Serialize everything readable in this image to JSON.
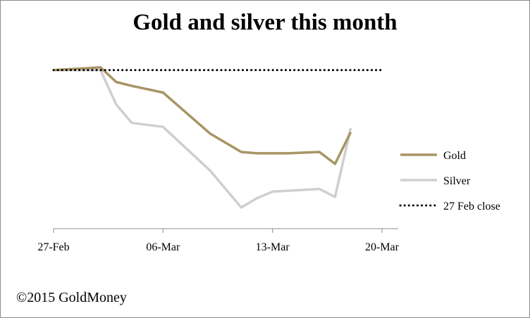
{
  "chart_data": {
    "type": "line",
    "title": "Gold and silver this month",
    "xlabel": "",
    "ylabel": "",
    "x_ticks": [
      "27-Feb",
      "06-Mar",
      "13-Mar",
      "20-Mar"
    ],
    "x_tick_days": [
      0,
      7,
      14,
      21
    ],
    "ylim": [
      88,
      102
    ],
    "legend_position": "right",
    "grid": false,
    "series": [
      {
        "name": "Gold",
        "color": "#a89465",
        "style": "solid",
        "points": [
          [
            0,
            100
          ],
          [
            3,
            100.2
          ],
          [
            4,
            99.1
          ],
          [
            5,
            98.8
          ],
          [
            7,
            98.3
          ],
          [
            10,
            95.2
          ],
          [
            12,
            93.8
          ],
          [
            13,
            93.7
          ],
          [
            15,
            93.7
          ],
          [
            17,
            93.8
          ],
          [
            18,
            92.9
          ],
          [
            19,
            95.3
          ]
        ]
      },
      {
        "name": "Silver",
        "color": "#cfcfcf",
        "style": "solid",
        "points": [
          [
            0,
            100
          ],
          [
            3,
            100
          ],
          [
            4,
            97.4
          ],
          [
            5,
            96.0
          ],
          [
            7,
            95.7
          ],
          [
            10,
            92.4
          ],
          [
            12,
            89.6
          ],
          [
            13,
            90.3
          ],
          [
            14,
            90.8
          ],
          [
            17,
            91.0
          ],
          [
            18,
            90.4
          ],
          [
            19,
            95.6
          ]
        ]
      },
      {
        "name": "27 Feb close",
        "color": "#000000",
        "style": "dotted",
        "points": [
          [
            0,
            100
          ],
          [
            21,
            100
          ]
        ]
      }
    ]
  },
  "footer": {
    "copyright": "©2015 GoldMoney"
  }
}
